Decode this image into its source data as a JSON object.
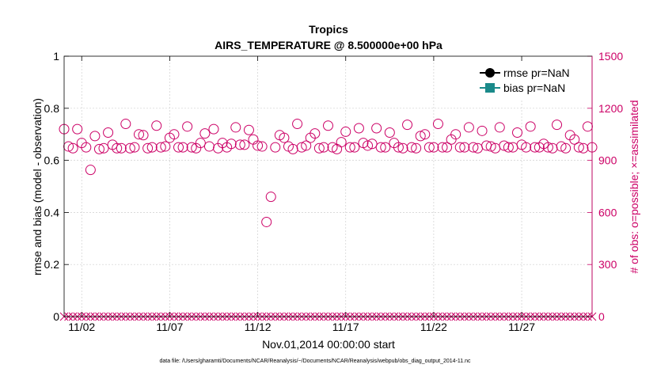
{
  "chart_data": {
    "type": "scatter",
    "title": "Tropics",
    "subtitle": "AIRS_TEMPERATURE @ 8.500000e+00 hPa",
    "xlabel": "Nov.01,2014 00:00:00 start",
    "ylabel_left": "rmse and bias (model - observation)",
    "ylabel_right": "# of obs: o=possible; ×=assimilated",
    "x_ticks": [
      "11/02",
      "11/07",
      "11/12",
      "11/17",
      "11/22",
      "11/27"
    ],
    "x_tick_days": [
      2,
      7,
      12,
      17,
      22,
      27
    ],
    "xlim": [
      1,
      31
    ],
    "ylim_left": [
      0,
      1
    ],
    "y_ticks_left": [
      "0",
      "0.2",
      "0.4",
      "0.6",
      "0.8",
      "1"
    ],
    "y_tick_values_left": [
      0,
      0.2,
      0.4,
      0.6,
      0.8,
      1
    ],
    "ylim_right": [
      0,
      1500
    ],
    "y_ticks_right": [
      "0",
      "300",
      "600",
      "900",
      "1200",
      "1500"
    ],
    "y_tick_values_right": [
      0,
      300,
      600,
      900,
      1200,
      1500
    ],
    "grid": true,
    "legend_position": "top-right",
    "series": [
      {
        "name": "rmse pr=NaN",
        "color": "#000000",
        "marker": "circle"
      },
      {
        "name": "bias pr=NaN",
        "color": "#1a8a8a",
        "marker": "square"
      }
    ],
    "possible_color": "#cc0066",
    "assimilated_color": "#cc0066",
    "possible_obs": [
      {
        "x": 1.0,
        "y": 1080
      },
      {
        "x": 1.25,
        "y": 980
      },
      {
        "x": 1.5,
        "y": 970
      },
      {
        "x": 1.75,
        "y": 1080
      },
      {
        "x": 2.0,
        "y": 1000
      },
      {
        "x": 2.25,
        "y": 975
      },
      {
        "x": 2.5,
        "y": 845
      },
      {
        "x": 2.75,
        "y": 1040
      },
      {
        "x": 3.0,
        "y": 965
      },
      {
        "x": 3.25,
        "y": 970
      },
      {
        "x": 3.5,
        "y": 1060
      },
      {
        "x": 3.75,
        "y": 990
      },
      {
        "x": 4.0,
        "y": 970
      },
      {
        "x": 4.25,
        "y": 970
      },
      {
        "x": 4.5,
        "y": 1110
      },
      {
        "x": 4.75,
        "y": 970
      },
      {
        "x": 5.0,
        "y": 975
      },
      {
        "x": 5.25,
        "y": 1050
      },
      {
        "x": 5.5,
        "y": 1045
      },
      {
        "x": 5.75,
        "y": 970
      },
      {
        "x": 6.0,
        "y": 975
      },
      {
        "x": 6.25,
        "y": 1100
      },
      {
        "x": 6.5,
        "y": 975
      },
      {
        "x": 6.75,
        "y": 980
      },
      {
        "x": 7.0,
        "y": 1030
      },
      {
        "x": 7.25,
        "y": 1050
      },
      {
        "x": 7.5,
        "y": 975
      },
      {
        "x": 7.75,
        "y": 975
      },
      {
        "x": 8.0,
        "y": 1095
      },
      {
        "x": 8.25,
        "y": 975
      },
      {
        "x": 8.5,
        "y": 970
      },
      {
        "x": 8.75,
        "y": 1000
      },
      {
        "x": 9.0,
        "y": 1055
      },
      {
        "x": 9.25,
        "y": 980
      },
      {
        "x": 9.5,
        "y": 1080
      },
      {
        "x": 9.75,
        "y": 970
      },
      {
        "x": 10.0,
        "y": 1000
      },
      {
        "x": 10.25,
        "y": 975
      },
      {
        "x": 10.5,
        "y": 995
      },
      {
        "x": 10.75,
        "y": 1090
      },
      {
        "x": 11.0,
        "y": 990
      },
      {
        "x": 11.25,
        "y": 990
      },
      {
        "x": 11.5,
        "y": 1075
      },
      {
        "x": 11.75,
        "y": 1020
      },
      {
        "x": 12.0,
        "y": 985
      },
      {
        "x": 12.25,
        "y": 980
      },
      {
        "x": 12.5,
        "y": 545
      },
      {
        "x": 12.75,
        "y": 690
      },
      {
        "x": 13.0,
        "y": 975
      },
      {
        "x": 13.25,
        "y": 1045
      },
      {
        "x": 13.5,
        "y": 1030
      },
      {
        "x": 13.75,
        "y": 980
      },
      {
        "x": 14.0,
        "y": 965
      },
      {
        "x": 14.25,
        "y": 1110
      },
      {
        "x": 14.5,
        "y": 975
      },
      {
        "x": 14.75,
        "y": 985
      },
      {
        "x": 15.0,
        "y": 1030
      },
      {
        "x": 15.25,
        "y": 1055
      },
      {
        "x": 15.5,
        "y": 970
      },
      {
        "x": 15.75,
        "y": 975
      },
      {
        "x": 16.0,
        "y": 1100
      },
      {
        "x": 16.25,
        "y": 975
      },
      {
        "x": 16.5,
        "y": 965
      },
      {
        "x": 16.75,
        "y": 1005
      },
      {
        "x": 17.0,
        "y": 1065
      },
      {
        "x": 17.25,
        "y": 975
      },
      {
        "x": 17.5,
        "y": 975
      },
      {
        "x": 17.75,
        "y": 1085
      },
      {
        "x": 18.0,
        "y": 1000
      },
      {
        "x": 18.25,
        "y": 985
      },
      {
        "x": 18.5,
        "y": 995
      },
      {
        "x": 18.75,
        "y": 1085
      },
      {
        "x": 19.0,
        "y": 975
      },
      {
        "x": 19.25,
        "y": 975
      },
      {
        "x": 19.5,
        "y": 1060
      },
      {
        "x": 19.75,
        "y": 1000
      },
      {
        "x": 20.0,
        "y": 975
      },
      {
        "x": 20.25,
        "y": 970
      },
      {
        "x": 20.5,
        "y": 1105
      },
      {
        "x": 20.75,
        "y": 975
      },
      {
        "x": 21.0,
        "y": 970
      },
      {
        "x": 21.25,
        "y": 1040
      },
      {
        "x": 21.5,
        "y": 1050
      },
      {
        "x": 21.75,
        "y": 975
      },
      {
        "x": 22.0,
        "y": 975
      },
      {
        "x": 22.25,
        "y": 1110
      },
      {
        "x": 22.5,
        "y": 975
      },
      {
        "x": 22.75,
        "y": 975
      },
      {
        "x": 23.0,
        "y": 1020
      },
      {
        "x": 23.25,
        "y": 1050
      },
      {
        "x": 23.5,
        "y": 975
      },
      {
        "x": 23.75,
        "y": 975
      },
      {
        "x": 24.0,
        "y": 1090
      },
      {
        "x": 24.25,
        "y": 975
      },
      {
        "x": 24.5,
        "y": 970
      },
      {
        "x": 24.75,
        "y": 1070
      },
      {
        "x": 25.0,
        "y": 985
      },
      {
        "x": 25.25,
        "y": 980
      },
      {
        "x": 25.5,
        "y": 970
      },
      {
        "x": 25.75,
        "y": 1090
      },
      {
        "x": 26.0,
        "y": 985
      },
      {
        "x": 26.25,
        "y": 975
      },
      {
        "x": 26.5,
        "y": 975
      },
      {
        "x": 26.75,
        "y": 1060
      },
      {
        "x": 27.0,
        "y": 990
      },
      {
        "x": 27.25,
        "y": 975
      },
      {
        "x": 27.5,
        "y": 1095
      },
      {
        "x": 27.75,
        "y": 975
      },
      {
        "x": 28.0,
        "y": 975
      },
      {
        "x": 28.25,
        "y": 995
      },
      {
        "x": 28.5,
        "y": 975
      },
      {
        "x": 28.75,
        "y": 970
      },
      {
        "x": 29.0,
        "y": 1105
      },
      {
        "x": 29.25,
        "y": 980
      },
      {
        "x": 29.5,
        "y": 970
      },
      {
        "x": 29.75,
        "y": 1045
      },
      {
        "x": 30.0,
        "y": 1020
      },
      {
        "x": 30.25,
        "y": 975
      },
      {
        "x": 30.5,
        "y": 970
      },
      {
        "x": 30.75,
        "y": 1095
      },
      {
        "x": 31.0,
        "y": 975
      }
    ],
    "assimilated_obs_count_each_cycle": 0,
    "assimilated_obs_x_step": 0.25
  },
  "footer": {
    "data_file": "data file: /Users/gharamti/Documents/NCAR/Reanalysis/~/Documents/NCAR/Reanalysis/webpub/obs_diag_output_2014-11.nc"
  }
}
